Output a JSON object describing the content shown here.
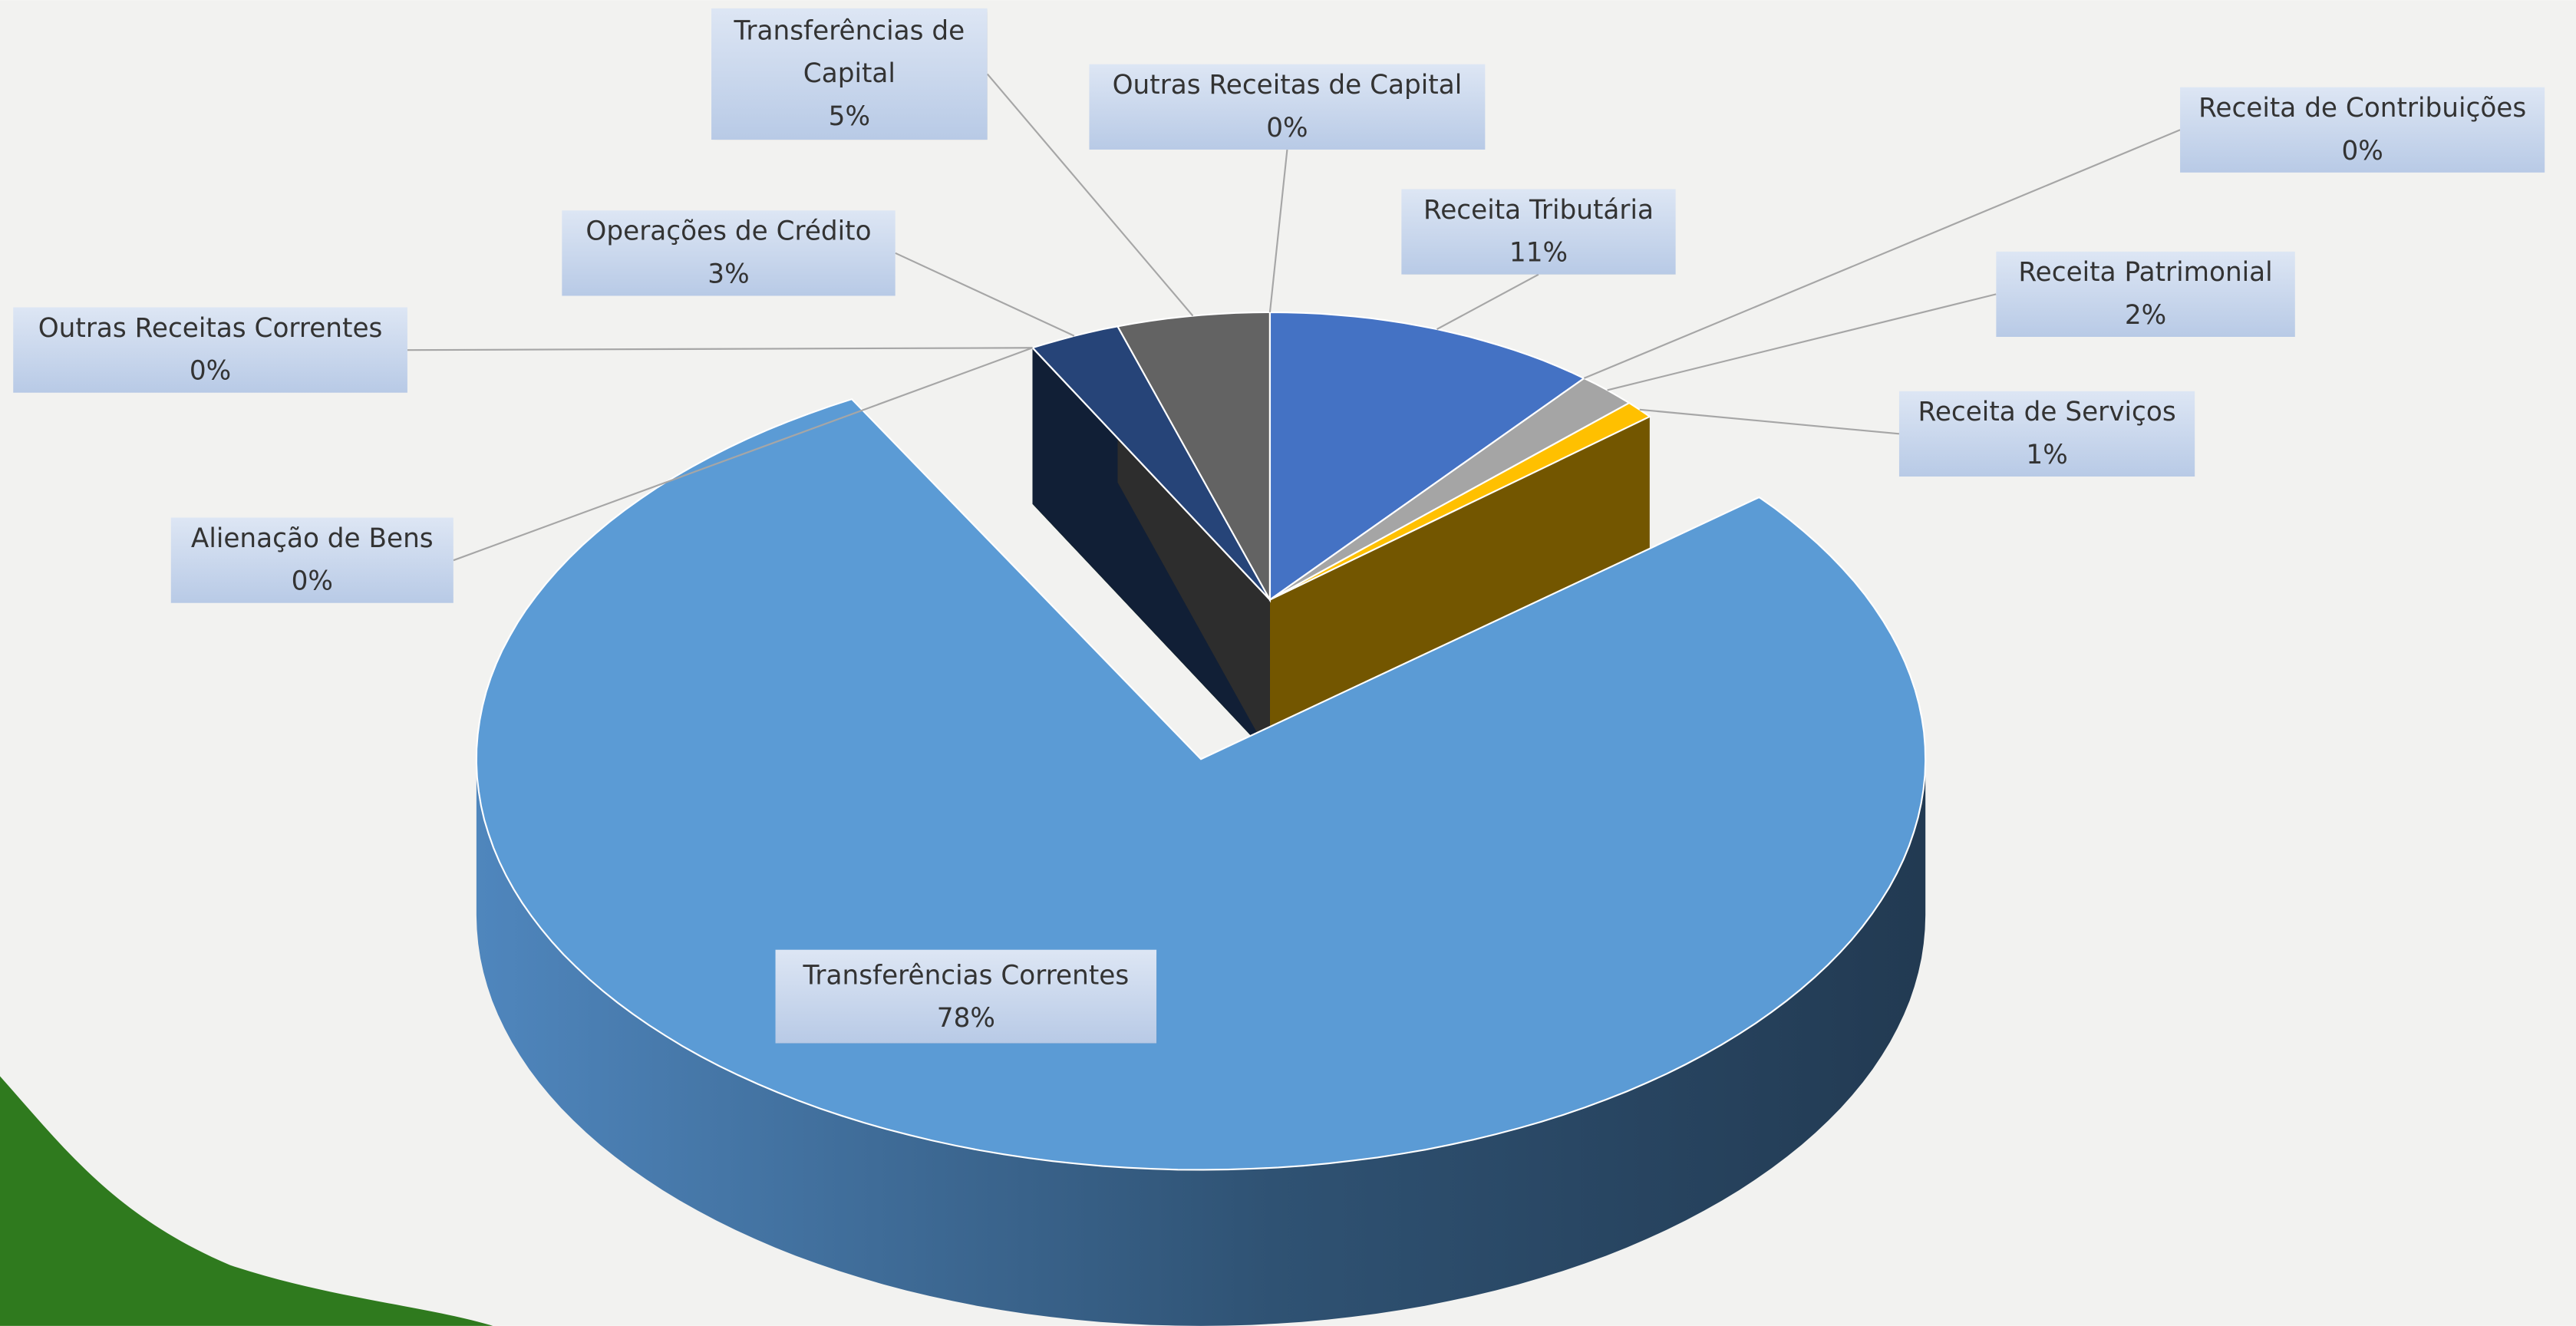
{
  "chart_data": {
    "type": "pie3d",
    "categories": [
      "Receita Tributária",
      "Receita de Contribuições",
      "Receita Patrimonial",
      "Receita de Serviços",
      "Transferências Correntes",
      "Outras Receitas Correntes",
      "Alienação de Bens",
      "Operações de Crédito",
      "Transferências de Capital",
      "Outras Receitas de Capital"
    ],
    "values": [
      11,
      0,
      2,
      1,
      78,
      0,
      0,
      3,
      5,
      0
    ],
    "value_labels": [
      "11%",
      "0%",
      "2%",
      "1%",
      "78%",
      "0%",
      "0%",
      "3%",
      "5%",
      "0%"
    ],
    "colors": [
      "#4472c4",
      "#ed7d31",
      "#a5a5a5",
      "#ffc000",
      "#5b9bd5",
      "#a9d18e",
      "#70ad47",
      "#264478",
      "#636363",
      "#997300"
    ]
  }
}
